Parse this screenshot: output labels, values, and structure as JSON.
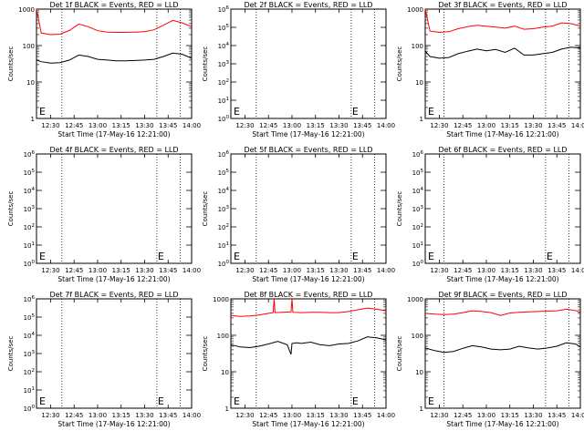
{
  "chart_data": [
    {
      "type": "line",
      "title": "Det 1f BLACK = Events, RED = LLD",
      "xlabel": "Start Time (17-May-16 12:21:00)",
      "ylabel": "Counts/sec",
      "yscale": "log",
      "ylim": [
        1,
        1000
      ],
      "yticks": [
        "1",
        "10",
        "100",
        "1000"
      ],
      "xlim": [
        12.35,
        14.0
      ],
      "xticks": [
        "12:30",
        "12:45",
        "13:00",
        "13:15",
        "13:30",
        "13:45",
        "14:00"
      ],
      "dotted_x": [
        12.62,
        13.63,
        13.88
      ],
      "e_markers": [
        12.37
      ],
      "series": [
        {
          "color": "#ff0000",
          "x": [
            12.35,
            12.4,
            12.5,
            12.6,
            12.7,
            12.8,
            12.9,
            13.0,
            13.1,
            13.2,
            13.3,
            13.4,
            13.5,
            13.6,
            13.7,
            13.8,
            13.9,
            14.0
          ],
          "y": [
            1000,
            220,
            200,
            205,
            260,
            390,
            330,
            255,
            235,
            230,
            230,
            235,
            240,
            270,
            360,
            490,
            420,
            330
          ]
        },
        {
          "color": "#000000",
          "x": [
            12.35,
            12.4,
            12.5,
            12.6,
            12.7,
            12.8,
            12.9,
            13.0,
            13.1,
            13.2,
            13.3,
            13.4,
            13.5,
            13.6,
            13.7,
            13.8,
            13.9,
            14.0
          ],
          "y": [
            40,
            36,
            33,
            34,
            40,
            55,
            50,
            42,
            40,
            38,
            38,
            39,
            40,
            42,
            50,
            62,
            58,
            45
          ]
        }
      ]
    },
    {
      "type": "line",
      "title": "Det 2f BLACK = Events, RED = LLD",
      "xlabel": "Start Time (17-May-16 12:21:00)",
      "ylabel": "Counts/sec",
      "yscale": "log",
      "ylim": [
        1,
        1000000
      ],
      "yticks": [
        "10^0",
        "10^1",
        "10^2",
        "10^3",
        "10^4",
        "10^5",
        "10^6"
      ],
      "xlim": [
        12.35,
        14.0
      ],
      "xticks": [
        "12:30",
        "12:45",
        "13:00",
        "13:15",
        "13:30",
        "13:45",
        "14:00"
      ],
      "dotted_x": [
        12.62,
        13.63,
        13.88
      ],
      "e_markers": [
        12.37,
        13.63
      ],
      "series": []
    },
    {
      "type": "line",
      "title": "Det 3f BLACK = Events, RED = LLD",
      "xlabel": "Start Time (17-May-16 12:21:00)",
      "ylabel": "Counts/sec",
      "yscale": "log",
      "ylim": [
        1,
        1000
      ],
      "yticks": [
        "1",
        "10",
        "100",
        "1000"
      ],
      "xlim": [
        12.35,
        14.0
      ],
      "xticks": [
        "12:30",
        "12:45",
        "13:00",
        "13:15",
        "13:30",
        "13:45",
        "14:00"
      ],
      "dotted_x": [
        12.55,
        13.63,
        13.88
      ],
      "e_markers": [
        12.37
      ],
      "series": [
        {
          "color": "#ff0000",
          "x": [
            12.35,
            12.4,
            12.5,
            12.6,
            12.7,
            12.8,
            12.9,
            13.0,
            13.1,
            13.2,
            13.3,
            13.4,
            13.5,
            13.6,
            13.7,
            13.8,
            13.9,
            14.0
          ],
          "y": [
            1000,
            250,
            230,
            240,
            290,
            330,
            360,
            340,
            320,
            300,
            340,
            280,
            290,
            320,
            340,
            420,
            400,
            340
          ]
        },
        {
          "color": "#000000",
          "x": [
            12.35,
            12.4,
            12.5,
            12.6,
            12.7,
            12.8,
            12.9,
            13.0,
            13.1,
            13.2,
            13.3,
            13.4,
            13.5,
            13.6,
            13.7,
            13.8,
            13.9,
            14.0
          ],
          "y": [
            70,
            50,
            45,
            47,
            60,
            70,
            80,
            72,
            78,
            65,
            85,
            55,
            55,
            60,
            65,
            80,
            90,
            85
          ]
        }
      ]
    },
    {
      "type": "line",
      "title": "Det 4f BLACK = Events, RED = LLD",
      "xlabel": "Start Time (17-May-16 12:21:00)",
      "ylabel": "Counts/sec",
      "yscale": "log",
      "ylim": [
        1,
        1000000
      ],
      "yticks": [
        "10^0",
        "10^1",
        "10^2",
        "10^3",
        "10^4",
        "10^5",
        "10^6"
      ],
      "xlim": [
        12.35,
        14.0
      ],
      "xticks": [
        "12:30",
        "12:45",
        "13:00",
        "13:15",
        "13:30",
        "13:45",
        "14:00"
      ],
      "dotted_x": [
        12.62,
        13.63,
        13.88
      ],
      "e_markers": [
        12.37,
        13.63
      ],
      "series": []
    },
    {
      "type": "line",
      "title": "Det 5f BLACK = Events, RED = LLD",
      "xlabel": "Start Time (17-May-16 12:21:00)",
      "ylabel": "Counts/sec",
      "yscale": "log",
      "ylim": [
        1,
        1000000
      ],
      "yticks": [
        "10^0",
        "10^1",
        "10^2",
        "10^3",
        "10^4",
        "10^5",
        "10^6"
      ],
      "xlim": [
        12.35,
        14.0
      ],
      "xticks": [
        "12:30",
        "12:45",
        "13:00",
        "13:15",
        "13:30",
        "13:45",
        "14:00"
      ],
      "dotted_x": [
        12.62,
        13.63,
        13.88
      ],
      "e_markers": [
        12.37,
        13.63
      ],
      "series": []
    },
    {
      "type": "line",
      "title": "Det 6f BLACK = Events, RED = LLD",
      "xlabel": "Start Time (17-May-16 12:21:00)",
      "ylabel": "Counts/sec",
      "yscale": "log",
      "ylim": [
        1,
        1000000
      ],
      "yticks": [
        "10^0",
        "10^1",
        "10^2",
        "10^3",
        "10^4",
        "10^5",
        "10^6"
      ],
      "xlim": [
        12.35,
        14.0
      ],
      "xticks": [
        "12:30",
        "12:45",
        "13:00",
        "13:15",
        "13:30",
        "13:45",
        "14:00"
      ],
      "dotted_x": [
        12.55,
        13.63,
        13.88
      ],
      "e_markers": [
        12.37,
        13.63
      ],
      "series": []
    },
    {
      "type": "line",
      "title": "Det 7f BLACK = Events, RED = LLD",
      "xlabel": "Start Time (17-May-16 12:21:00)",
      "ylabel": "Counts/sec",
      "yscale": "log",
      "ylim": [
        1,
        1000000
      ],
      "yticks": [
        "10^0",
        "10^1",
        "10^2",
        "10^3",
        "10^4",
        "10^5",
        "10^6"
      ],
      "xlim": [
        12.35,
        14.0
      ],
      "xticks": [
        "12:30",
        "12:45",
        "13:00",
        "13:15",
        "13:30",
        "13:45",
        "14:00"
      ],
      "dotted_x": [
        12.62,
        13.63,
        13.88
      ],
      "e_markers": [
        12.37,
        13.63
      ],
      "series": []
    },
    {
      "type": "line",
      "title": "Det 8f BLACK = Events, RED = LLD",
      "xlabel": "Start Time (17-May-16 12:21:00)",
      "ylabel": "Counts/sec",
      "yscale": "log",
      "ylim": [
        1,
        1000
      ],
      "yticks": [
        "1",
        "10",
        "100",
        "1000"
      ],
      "xlim": [
        12.35,
        14.0
      ],
      "xticks": [
        "12:30",
        "12:45",
        "13:00",
        "13:15",
        "13:30",
        "13:45",
        "14:00"
      ],
      "dotted_x": [
        12.62,
        13.63,
        13.88
      ],
      "e_markers": [
        12.37,
        13.63
      ],
      "series": [
        {
          "color": "#ff0000",
          "x": [
            12.35,
            12.45,
            12.55,
            12.65,
            12.75,
            12.8,
            12.81,
            12.82,
            12.9,
            12.99,
            13.0,
            13.01,
            13.1,
            13.2,
            13.3,
            13.4,
            13.5,
            13.6,
            13.7,
            13.8,
            13.9,
            14.0
          ],
          "y": [
            350,
            330,
            340,
            360,
            400,
            420,
            1000,
            420,
            430,
            440,
            1000,
            430,
            420,
            430,
            430,
            420,
            420,
            450,
            500,
            560,
            520,
            470
          ]
        },
        {
          "color": "#000000",
          "x": [
            12.35,
            12.45,
            12.55,
            12.65,
            12.75,
            12.85,
            12.95,
            12.99,
            13.0,
            13.05,
            13.1,
            13.2,
            13.3,
            13.4,
            13.5,
            13.6,
            13.7,
            13.8,
            13.9,
            14.0
          ],
          "y": [
            55,
            48,
            46,
            50,
            58,
            68,
            55,
            30,
            60,
            62,
            60,
            65,
            55,
            52,
            58,
            60,
            70,
            90,
            85,
            75
          ]
        }
      ]
    },
    {
      "type": "line",
      "title": "Det 9f BLACK = Events, RED = LLD",
      "xlabel": "Start Time (17-May-16 12:21:00)",
      "ylabel": "Counts/sec",
      "yscale": "log",
      "ylim": [
        1,
        1000
      ],
      "yticks": [
        "1",
        "10",
        "100",
        "1000"
      ],
      "xlim": [
        12.35,
        14.0
      ],
      "xticks": [
        "12:30",
        "12:45",
        "13:00",
        "13:15",
        "13:30",
        "13:45",
        "14:00"
      ],
      "dotted_x": [
        12.55,
        13.63,
        13.88
      ],
      "e_markers": [
        12.37
      ],
      "series": [
        {
          "color": "#ff0000",
          "x": [
            12.35,
            12.45,
            12.55,
            12.65,
            12.75,
            12.85,
            12.95,
            13.05,
            13.15,
            13.25,
            13.35,
            13.45,
            13.55,
            13.65,
            13.75,
            13.85,
            13.95,
            14.0
          ],
          "y": [
            400,
            380,
            370,
            380,
            420,
            470,
            450,
            420,
            350,
            410,
            430,
            440,
            450,
            460,
            470,
            520,
            480,
            420
          ]
        },
        {
          "color": "#000000",
          "x": [
            12.35,
            12.45,
            12.55,
            12.65,
            12.75,
            12.85,
            12.95,
            13.05,
            13.15,
            13.25,
            13.35,
            13.45,
            13.55,
            13.65,
            13.75,
            13.85,
            13.95,
            14.0
          ],
          "y": [
            45,
            38,
            34,
            36,
            44,
            52,
            48,
            42,
            40,
            42,
            50,
            45,
            42,
            45,
            50,
            62,
            58,
            48
          ]
        }
      ]
    }
  ]
}
